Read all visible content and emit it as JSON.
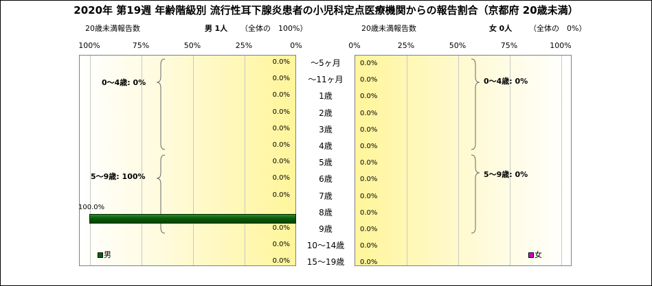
{
  "title": "2020年 第19週 年齢階級別 流行性耳下腺炎患者の小児科定点医療機関からの報告割合（京都府 20歳未満）",
  "left_panel": {
    "sub_label": "20歳未満報告数",
    "sex": "男",
    "count": "1人",
    "share": "（全体の　100%）",
    "ticks": [
      "100%",
      "75%",
      "50%",
      "25%",
      "0%"
    ],
    "legend": "男",
    "legend_color": "#006400",
    "group_labels": [
      "0～4歳: 0%",
      "5～9歳: 100%"
    ]
  },
  "right_panel": {
    "sub_label": "20歳未満報告数",
    "sex": "女",
    "count": "0人",
    "share": "（全体の　0%）",
    "ticks": [
      "0%",
      "25%",
      "50%",
      "75%",
      "100%"
    ],
    "legend": "女",
    "legend_color": "#cc00cc",
    "group_labels": [
      "0～4歳: 0%",
      "5～9歳: 0%"
    ]
  },
  "chart_data": {
    "type": "bar",
    "orientation": "horizontal",
    "layout": "population-pyramid",
    "categories": [
      "～5ヶ月",
      "～11ヶ月",
      "1歳",
      "2歳",
      "3歳",
      "4歳",
      "5歳",
      "6歳",
      "7歳",
      "8歳",
      "9歳",
      "10～14歳",
      "15～19歳"
    ],
    "xlim": [
      0,
      100
    ],
    "grid": true,
    "series": [
      {
        "name": "男",
        "values": [
          0,
          0,
          0,
          0,
          0,
          0,
          0,
          0,
          0,
          100,
          0,
          0,
          0
        ],
        "labels": [
          "0.0%",
          "0.0%",
          "0.0%",
          "0.0%",
          "0.0%",
          "0.0%",
          "0.0%",
          "0.0%",
          "0.0%",
          "100.0%",
          "0.0%",
          "0.0%",
          "0.0%"
        ]
      },
      {
        "name": "女",
        "values": [
          0,
          0,
          0,
          0,
          0,
          0,
          0,
          0,
          0,
          0,
          0,
          0,
          0
        ],
        "labels": [
          "0.0%",
          "0.0%",
          "0.0%",
          "0.0%",
          "0.0%",
          "0.0%",
          "0.0%",
          "0.0%",
          "0.0%",
          "0.0%",
          "0.0%",
          "0.0%",
          "0.0%"
        ]
      }
    ]
  }
}
